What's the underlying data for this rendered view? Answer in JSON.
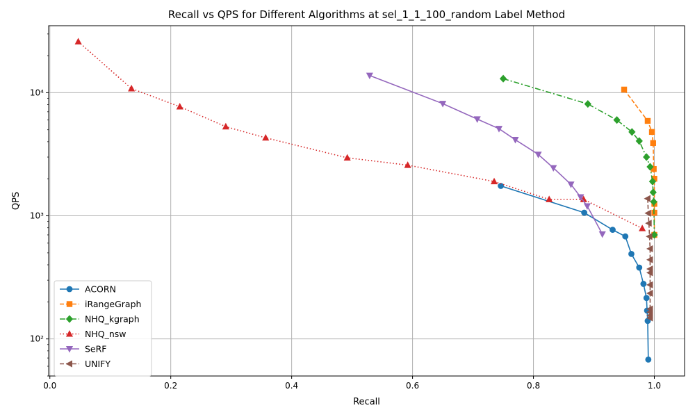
{
  "chart_data": {
    "type": "line",
    "title": "Recall vs QPS for Different Algorithms at sel_1_1_100_random Label Method",
    "xlabel": "Recall",
    "ylabel": "QPS",
    "xlim": [
      -0.002,
      1.05
    ],
    "ylim": [
      50,
      35000
    ],
    "yscale": "log",
    "grid": true,
    "legend_position": "lower-left",
    "x_ticks": [
      0.0,
      0.2,
      0.4,
      0.6,
      0.8,
      1.0
    ],
    "x_tick_labels": [
      "0.0",
      "0.2",
      "0.4",
      "0.6",
      "0.8",
      "1.0"
    ],
    "y_ticks": [
      100,
      1000,
      10000
    ],
    "y_tick_labels": [
      "10²",
      "10³",
      "10⁴"
    ],
    "series": [
      {
        "name": "ACORN",
        "color": "#1f77b4",
        "marker": "circle",
        "dash": "solid",
        "x": [
          0.746,
          0.884,
          0.931,
          0.952,
          0.962,
          0.975,
          0.982,
          0.987,
          0.988,
          0.989,
          0.99
        ],
        "y": [
          1750,
          1060,
          770,
          680,
          490,
          380,
          280,
          215,
          170,
          140,
          68
        ]
      },
      {
        "name": "iRangeGraph",
        "color": "#ff7f0e",
        "marker": "square",
        "dash": "dashed",
        "x": [
          0.95,
          0.989,
          0.996,
          0.998,
          0.999,
          1.0,
          1.0,
          1.0,
          1.0
        ],
        "y": [
          10600,
          5900,
          4800,
          3900,
          2400,
          2000,
          1250,
          1060,
          700
        ]
      },
      {
        "name": "NHQ_kgraph",
        "color": "#2ca02c",
        "marker": "diamond",
        "dash": "dashdot",
        "x": [
          0.75,
          0.89,
          0.938,
          0.963,
          0.975,
          0.987,
          0.993,
          0.997,
          0.998,
          0.999,
          1.0
        ],
        "y": [
          13000,
          8100,
          6000,
          4800,
          4050,
          3000,
          2500,
          1900,
          1550,
          1300,
          700
        ]
      },
      {
        "name": "NHQ_nsw",
        "color": "#d62728",
        "marker": "triangle-up",
        "dash": "dotted",
        "x": [
          0.047,
          0.135,
          0.215,
          0.291,
          0.357,
          0.492,
          0.592,
          0.735,
          0.826,
          0.883,
          0.98
        ],
        "y": [
          26000,
          10800,
          7700,
          5300,
          4300,
          2960,
          2580,
          1900,
          1360,
          1360,
          790
        ]
      },
      {
        "name": "SeRF",
        "color": "#9467bd",
        "marker": "triangle-down",
        "dash": "solid",
        "x": [
          0.529,
          0.65,
          0.707,
          0.743,
          0.77,
          0.808,
          0.833,
          0.862,
          0.878,
          0.889,
          0.914
        ],
        "y": [
          13800,
          8150,
          6100,
          5100,
          4150,
          3150,
          2450,
          1800,
          1420,
          1200,
          710
        ]
      },
      {
        "name": "UNIFY",
        "color": "#8c564b",
        "marker": "triangle-left",
        "dash": "dashed",
        "x": [
          0.989,
          0.99,
          0.991,
          0.992,
          0.993,
          0.993,
          0.993,
          0.993,
          0.993,
          0.993,
          0.993,
          0.993,
          0.993,
          0.993
        ],
        "y": [
          1380,
          1050,
          870,
          680,
          540,
          440,
          370,
          345,
          275,
          235,
          175,
          165,
          155,
          148
        ]
      }
    ]
  }
}
